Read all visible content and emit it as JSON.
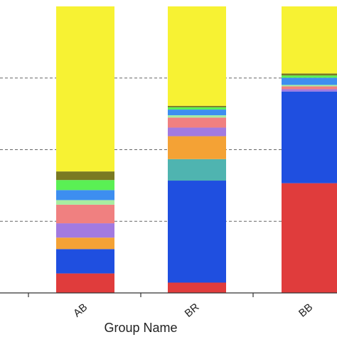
{
  "chart_data": {
    "type": "bar",
    "stacked": true,
    "xlabel": "Group Name",
    "categories": [
      "AB",
      "BR",
      "BB"
    ],
    "grid": "horizontal dashed",
    "ylim": [
      0,
      1
    ],
    "series": [
      {
        "color": "#e03c3c",
        "values": [
          0.068,
          0.036,
          0.383
        ]
      },
      {
        "color": "#1f4fe0",
        "values": [
          0.085,
          0.356,
          0.32
        ]
      },
      {
        "color": "#f4a235",
        "values": [
          0.04,
          0.0,
          0.0
        ]
      },
      {
        "color": "#4fb4b0",
        "values": [
          0.0,
          0.075,
          0.0
        ]
      },
      {
        "color": "#f4a235",
        "values": [
          0.0,
          0.08,
          0.0
        ]
      },
      {
        "color": "#a27ae0",
        "values": [
          0.05,
          0.03,
          0.008
        ]
      },
      {
        "color": "#f08080",
        "values": [
          0.065,
          0.035,
          0.01
        ]
      },
      {
        "color": "#a8eda0",
        "values": [
          0.016,
          0.008,
          0.005
        ]
      },
      {
        "color": "#3d8ef0",
        "values": [
          0.035,
          0.02,
          0.025
        ]
      },
      {
        "color": "#5af054",
        "values": [
          0.035,
          0.008,
          0.008
        ]
      },
      {
        "color": "#7a7a22",
        "values": [
          0.03,
          0.005,
          0.007
        ]
      },
      {
        "color": "#f7f233",
        "values": [
          0.576,
          0.347,
          0.234
        ]
      }
    ]
  }
}
